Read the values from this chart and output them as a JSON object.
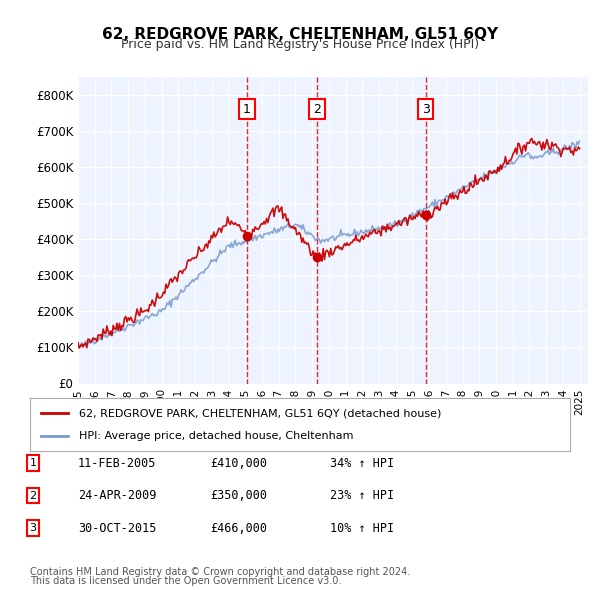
{
  "title": "62, REDGROVE PARK, CHELTENHAM, GL51 6QY",
  "subtitle": "Price paid vs. HM Land Registry's House Price Index (HPI)",
  "ylabel": "",
  "xlim_start": 1995.0,
  "xlim_end": 2025.5,
  "ylim": [
    0,
    850000
  ],
  "yticks": [
    0,
    100000,
    200000,
    300000,
    400000,
    500000,
    600000,
    700000,
    800000
  ],
  "ytick_labels": [
    "£0",
    "£100K",
    "£200K",
    "£300K",
    "£400K",
    "£500K",
    "£600K",
    "£700K",
    "£800K"
  ],
  "bg_color": "#ddeeff",
  "plot_bg": "#eef4ff",
  "red_line_color": "#cc0000",
  "blue_line_color": "#7799cc",
  "vline_color": "#cc0000",
  "sale1_x": 2005.1,
  "sale1_y": 410000,
  "sale2_x": 2009.3,
  "sale2_y": 350000,
  "sale3_x": 2015.8,
  "sale3_y": 466000,
  "legend_label_red": "62, REDGROVE PARK, CHELTENHAM, GL51 6QY (detached house)",
  "legend_label_blue": "HPI: Average price, detached house, Cheltenham",
  "table_entries": [
    {
      "num": "1",
      "date": "11-FEB-2005",
      "price": "£410,000",
      "hpi": "34% ↑ HPI"
    },
    {
      "num": "2",
      "date": "24-APR-2009",
      "price": "£350,000",
      "hpi": "23% ↑ HPI"
    },
    {
      "num": "3",
      "date": "30-OCT-2015",
      "price": "£466,000",
      "hpi": "10% ↑ HPI"
    }
  ],
  "footer1": "Contains HM Land Registry data © Crown copyright and database right 2024.",
  "footer2": "This data is licensed under the Open Government Licence v3.0."
}
